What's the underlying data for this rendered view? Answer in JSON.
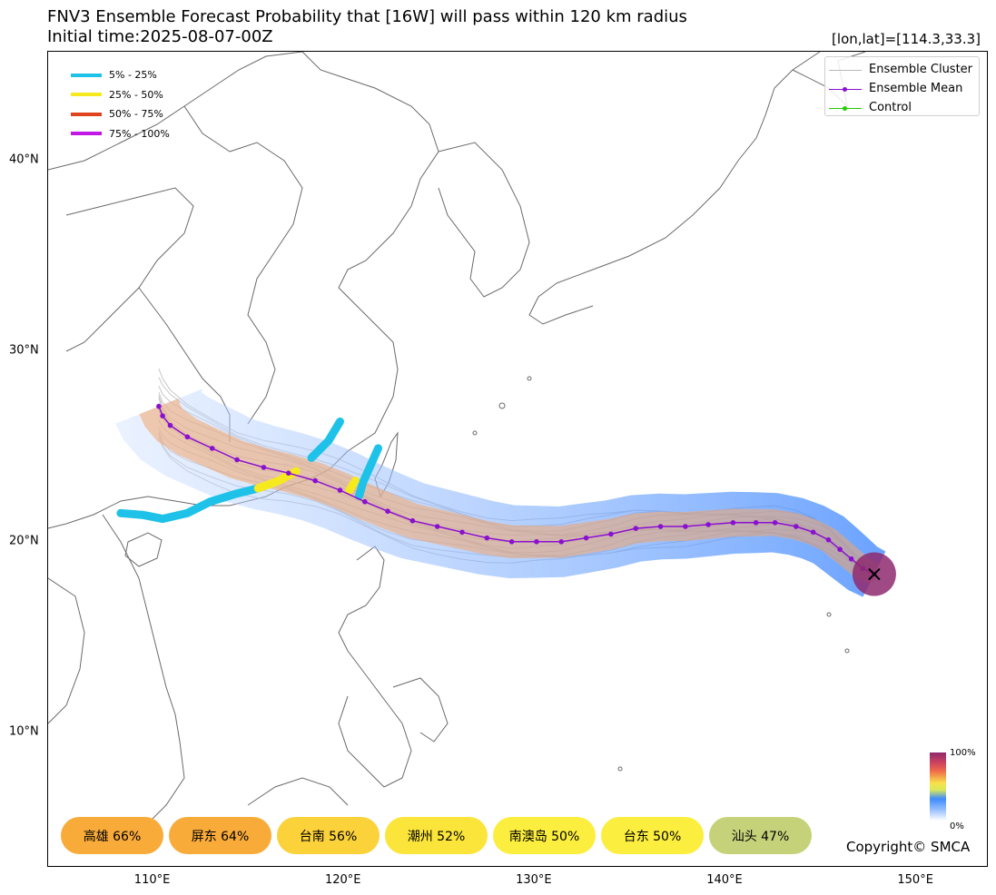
{
  "title": "FNV3 Ensemble Forecast Probability that [16W] will pass within 120 km radius",
  "initial_time": "Initial time:2025-08-07-00Z",
  "cursor_coord": "[lon,lat]=[114.3,33.3]",
  "copyright": "Copyright© SMCA",
  "map": {
    "lon_range": [
      104.5,
      153.8
    ],
    "lat_range": [
      2.9,
      45.7
    ],
    "lat_ticks": [
      {
        "value": 10,
        "label": "10°N"
      },
      {
        "value": 20,
        "label": "20°N"
      },
      {
        "value": 30,
        "label": "30°N"
      },
      {
        "value": 40,
        "label": "40°N"
      }
    ],
    "lon_ticks": [
      {
        "value": 110,
        "label": "110°E"
      },
      {
        "value": 120,
        "label": "120°E"
      },
      {
        "value": 130,
        "label": "130°E"
      },
      {
        "value": 140,
        "label": "140°E"
      },
      {
        "value": 150,
        "label": "150°E"
      }
    ],
    "land_line_color": "#6a6a6a",
    "ensemble_mean_color": "#8a10d0",
    "cluster_color": "#b8b8b8",
    "control_color": "#22cc00",
    "probability_legend": [
      {
        "label": "5% - 25%",
        "color": "#1ec2e8"
      },
      {
        "label": "25% - 50%",
        "color": "#f6ea1e"
      },
      {
        "label": "50% - 75%",
        "color": "#e0441f"
      },
      {
        "label": "75% - 100%",
        "color": "#c218e6"
      }
    ],
    "track_legend": [
      {
        "label": "Ensemble Cluster",
        "color": "#b8b8b8",
        "marker": false
      },
      {
        "label": "Ensemble Mean",
        "color": "#8a10d0",
        "marker": true
      },
      {
        "label": "Control",
        "color": "#22cc00",
        "marker": true
      }
    ],
    "colorbar": {
      "top_label": "100%",
      "bottom_label": "0%"
    },
    "storm_initial_position": [
      147.8,
      18.3
    ],
    "ensemble_mean_track": [
      [
        147.8,
        18.3
      ],
      [
        147.2,
        18.6
      ],
      [
        146.6,
        19.1
      ],
      [
        146.0,
        19.6
      ],
      [
        145.4,
        20.1
      ],
      [
        144.6,
        20.5
      ],
      [
        143.7,
        20.8
      ],
      [
        142.6,
        21.0
      ],
      [
        141.6,
        21.0
      ],
      [
        140.4,
        21.0
      ],
      [
        139.1,
        20.9
      ],
      [
        137.9,
        20.8
      ],
      [
        136.6,
        20.8
      ],
      [
        135.3,
        20.7
      ],
      [
        134.0,
        20.4
      ],
      [
        132.7,
        20.2
      ],
      [
        131.4,
        20.0
      ],
      [
        130.1,
        20.0
      ],
      [
        128.8,
        20.0
      ],
      [
        127.5,
        20.2
      ],
      [
        126.2,
        20.5
      ],
      [
        124.9,
        20.8
      ],
      [
        123.6,
        21.1
      ],
      [
        122.3,
        21.6
      ],
      [
        121.1,
        22.1
      ],
      [
        119.8,
        22.7
      ],
      [
        118.5,
        23.2
      ],
      [
        117.1,
        23.6
      ],
      [
        115.8,
        23.9
      ],
      [
        114.4,
        24.3
      ],
      [
        113.1,
        24.9
      ],
      [
        111.8,
        25.5
      ],
      [
        110.9,
        26.1
      ],
      [
        110.5,
        26.6
      ],
      [
        110.3,
        27.1
      ]
    ],
    "landfall_probabilities": [
      {
        "label": "高雄 66%",
        "color": "#f9ab3a"
      },
      {
        "label": "屏东 64%",
        "color": "#f9ab3a"
      },
      {
        "label": "台南 56%",
        "color": "#fbd23a"
      },
      {
        "label": "潮州 52%",
        "color": "#fbe53a"
      },
      {
        "label": "南澳岛 50%",
        "color": "#fbee3e"
      },
      {
        "label": "台东 50%",
        "color": "#fbee3e"
      },
      {
        "label": "汕头 47%",
        "color": "#c6d27a"
      }
    ]
  }
}
